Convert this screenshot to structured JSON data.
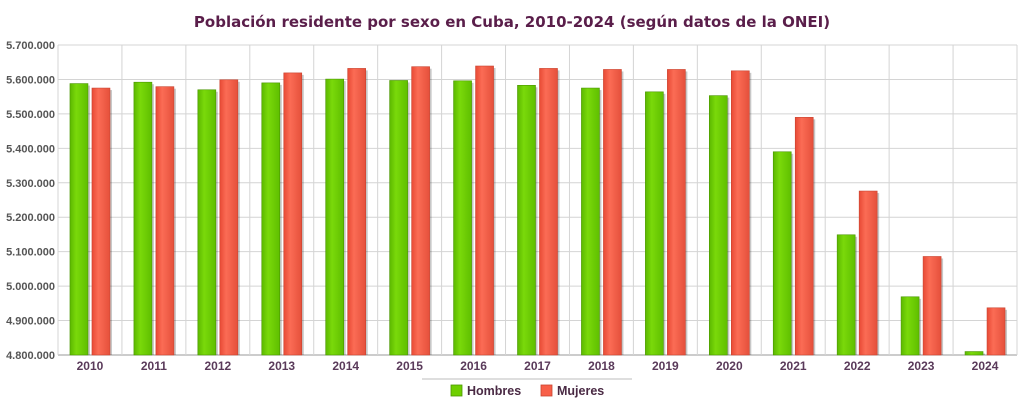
{
  "chart_data": {
    "type": "bar",
    "title": "Población residente por sexo en Cuba, 2010-2024 (según datos de la ONEI)",
    "xlabel": "",
    "ylabel": "",
    "categories": [
      "2010",
      "2011",
      "2012",
      "2013",
      "2014",
      "2015",
      "2016",
      "2017",
      "2018",
      "2019",
      "2020",
      "2021",
      "2022",
      "2023",
      "2024"
    ],
    "series": [
      {
        "name": "Hombres",
        "color": "#6ecf00",
        "values": [
          5588000,
          5592000,
          5570000,
          5590000,
          5601000,
          5597000,
          5596000,
          5583000,
          5575000,
          5564000,
          5553000,
          5390000,
          5149000,
          4969000,
          4810000
        ]
      },
      {
        "name": "Mujeres",
        "color": "#f85f48",
        "values": [
          5575000,
          5579000,
          5599000,
          5619000,
          5632000,
          5637000,
          5639000,
          5632000,
          5629000,
          5629000,
          5625000,
          5490000,
          5276000,
          5086000,
          4937000
        ]
      }
    ],
    "ylim": [
      4800000,
      5700000
    ],
    "yticks": [
      "4.800.000",
      "4.900.000",
      "5.000.000",
      "5.100.000",
      "5.200.000",
      "5.300.000",
      "5.400.000",
      "5.500.000",
      "5.600.000",
      "5.700.000"
    ],
    "grid": true,
    "legend": "bottom-center"
  }
}
